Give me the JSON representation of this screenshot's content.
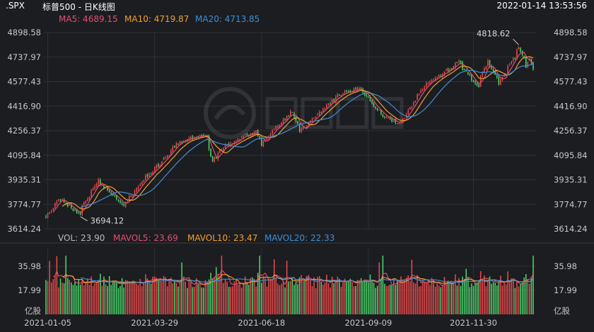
{
  "header": {
    "symbol": ".SPX",
    "name": "标普500 - 日K线图",
    "datetime": "2022-01-14 13:53:56"
  },
  "ma_legend": {
    "ma5": "MA5: 4689.15",
    "ma10": "MA10: 4719.87",
    "ma20": "MA20: 4713.85"
  },
  "vol_legend": {
    "vol": "VOL: 23.90",
    "mavol5": "MAVOL5: 23.69",
    "mavol10": "MAVOL10: 23.47",
    "mavol20": "MAVOL20: 22.33"
  },
  "colors": {
    "up": "#e84a4a",
    "down": "#4ad46a",
    "ma5": "#e0506e",
    "ma10": "#f0a030",
    "ma20": "#3c8fd8",
    "background": "#1c1d21",
    "grid": "#2e3036"
  },
  "chart_data": [
    {
      "type": "candlestick",
      "title": "标普500 - 日K线图",
      "y_ticks": [
        "4898.58",
        "4737.97",
        "4577.43",
        "4416.90",
        "4256.37",
        "4095.84",
        "3935.31",
        "3774.77",
        "3614.24"
      ],
      "ylim": [
        3614.24,
        4898.58
      ],
      "x_ticks": [
        "2021-01-05",
        "2021-03-29",
        "2021-06-18",
        "2021-09-09",
        "2021-11-30"
      ],
      "annotations": [
        {
          "label": "4818.62",
          "value": 4818.62,
          "date": "2022-01-04"
        },
        {
          "label": "3694.12",
          "value": 3694.12,
          "date": "2021-01-29"
        }
      ],
      "series_legend": [
        "MA5: 4689.15",
        "MA10: 4719.87",
        "MA20: 4713.85"
      ],
      "close_anchors": [
        [
          "2021-01-04",
          3700
        ],
        [
          "2021-01-14",
          3810
        ],
        [
          "2021-01-29",
          3714
        ],
        [
          "2021-02-12",
          3930
        ],
        [
          "2021-03-04",
          3768
        ],
        [
          "2021-03-18",
          3915
        ],
        [
          "2021-04-05",
          4077
        ],
        [
          "2021-04-16",
          4185
        ],
        [
          "2021-05-07",
          4232
        ],
        [
          "2021-05-12",
          4063
        ],
        [
          "2021-05-21",
          4156
        ],
        [
          "2021-06-15",
          4255
        ],
        [
          "2021-06-18",
          4166
        ],
        [
          "2021-07-12",
          4384
        ],
        [
          "2021-07-19",
          4258
        ],
        [
          "2021-08-16",
          4480
        ],
        [
          "2021-09-02",
          4536
        ],
        [
          "2021-09-20",
          4358
        ],
        [
          "2021-10-04",
          4300
        ],
        [
          "2021-10-22",
          4545
        ],
        [
          "2021-11-18",
          4704
        ],
        [
          "2021-11-30",
          4567
        ],
        [
          "2021-12-03",
          4538
        ],
        [
          "2021-12-10",
          4712
        ],
        [
          "2021-12-20",
          4568
        ],
        [
          "2022-01-04",
          4794
        ],
        [
          "2022-01-10",
          4670
        ],
        [
          "2022-01-12",
          4726
        ],
        [
          "2022-01-14",
          4660
        ]
      ]
    },
    {
      "type": "bar",
      "title": "VOL",
      "y_ticks": [
        "35.98",
        "17.99"
      ],
      "unit": "亿股",
      "ylim": [
        0,
        45
      ],
      "series_legend": [
        "VOL: 23.90",
        "MAVOL5: 23.69",
        "MAVOL10: 23.47",
        "MAVOL20: 22.33"
      ]
    }
  ]
}
